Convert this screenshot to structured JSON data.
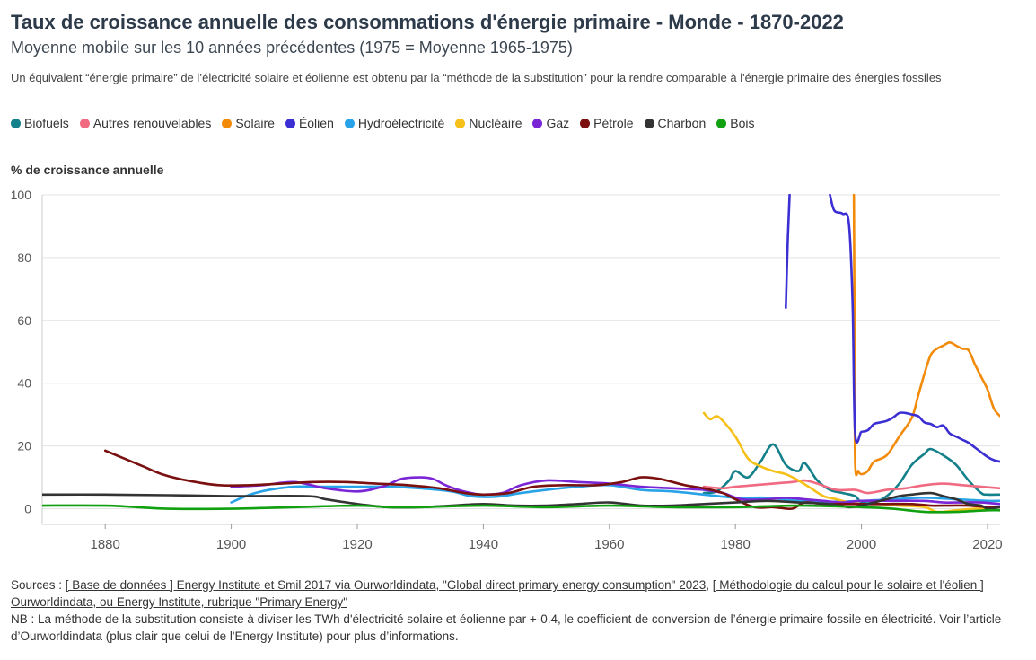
{
  "title": "Taux de croissance annuelle des consommations d'énergie primaire - Monde - 1870-2022",
  "subtitle": "Moyenne mobile sur les 10 années précédentes (1975 = Moyenne 1965-1975)",
  "description": "Un équivalent “énergie primaire” de l’électricité solaire et éolienne est obtenu par la “méthode de la substitution” pour la rendre comparable à l'énergie primaire des énergies fossiles",
  "footer": {
    "sources_prefix": "Sources : ",
    "link1": "[ Base de données ] Energy Institute et Smil 2017 via Ourworldindata, \"Global direct primary energy consumption\" 2023",
    "sep": ", ",
    "link2": "[ Méthodologie du calcul pour le solaire et l'éolien ] Ourworldindata, ou Energy Institute, rubrique \"Primary Energy\"",
    "note": "NB : La méthode de la substitution consiste à diviser les TWh d'électricité solaire et éolienne par +-0.4, le coefficient de conversion de l’énergie primaire fossile en électricité. Voir l’article d’Ourworldindata (plus clair que celui de l'Energy Institute) pour plus d’informations."
  },
  "chart_data": {
    "type": "line",
    "ylabel": "% de croissance annuelle",
    "xlim": [
      1870,
      2022
    ],
    "ylim": [
      -5,
      100
    ],
    "xticks": [
      1880,
      1900,
      1920,
      1940,
      1960,
      1980,
      2000,
      2020
    ],
    "yticks": [
      0,
      20,
      40,
      60,
      80,
      100
    ],
    "grid": "horizontal",
    "legend_position": "top",
    "series": [
      {
        "name": "Biofuels",
        "color": "#14808a",
        "points": [
          [
            1975,
            5
          ],
          [
            1977,
            5.5
          ],
          [
            1979,
            9
          ],
          [
            1980,
            12
          ],
          [
            1982,
            10
          ],
          [
            1984,
            15
          ],
          [
            1986,
            20.5
          ],
          [
            1988,
            14
          ],
          [
            1990,
            12
          ],
          [
            1991,
            14.5
          ],
          [
            1993,
            9
          ],
          [
            1995,
            6
          ],
          [
            1997,
            5
          ],
          [
            1999,
            4
          ],
          [
            2000,
            2
          ],
          [
            2002,
            2
          ],
          [
            2004,
            4
          ],
          [
            2006,
            8
          ],
          [
            2008,
            14
          ],
          [
            2010,
            17.5
          ],
          [
            2011,
            19
          ],
          [
            2013,
            17
          ],
          [
            2015,
            14
          ],
          [
            2017,
            9
          ],
          [
            2019,
            5
          ],
          [
            2020,
            4.5
          ],
          [
            2022,
            4.5
          ]
        ]
      },
      {
        "name": "Autres renouvelables",
        "color": "#f06b82",
        "points": [
          [
            1975,
            7
          ],
          [
            1978,
            6.5
          ],
          [
            1980,
            7
          ],
          [
            1983,
            7.5
          ],
          [
            1986,
            8
          ],
          [
            1989,
            8.5
          ],
          [
            1991,
            9
          ],
          [
            1993,
            8
          ],
          [
            1996,
            6
          ],
          [
            1999,
            6
          ],
          [
            2001,
            5
          ],
          [
            2004,
            6
          ],
          [
            2007,
            6.5
          ],
          [
            2010,
            7.5
          ],
          [
            2013,
            8
          ],
          [
            2016,
            7.5
          ],
          [
            2019,
            7
          ],
          [
            2022,
            6.5
          ]
        ]
      },
      {
        "name": "Solaire",
        "color": "#f28a0a",
        "points": [
          [
            1998.8,
            100
          ],
          [
            1998.9,
            60
          ],
          [
            1999,
            15
          ],
          [
            1999.5,
            12
          ],
          [
            2000,
            11
          ],
          [
            2001,
            12
          ],
          [
            2002,
            15
          ],
          [
            2004,
            17
          ],
          [
            2006,
            23
          ],
          [
            2008,
            29
          ],
          [
            2009,
            36
          ],
          [
            2010,
            43
          ],
          [
            2011,
            49
          ],
          [
            2012,
            51
          ],
          [
            2013,
            52
          ],
          [
            2014,
            53
          ],
          [
            2015,
            52
          ],
          [
            2016,
            51
          ],
          [
            2017,
            50.5
          ],
          [
            2018,
            46
          ],
          [
            2019,
            42
          ],
          [
            2020,
            38
          ],
          [
            2021,
            32
          ],
          [
            2022,
            29.5
          ]
        ]
      },
      {
        "name": "Éolien",
        "color": "#3b2fd4",
        "points": [
          [
            1988,
            64
          ],
          [
            1988.3,
            85
          ],
          [
            1988.6,
            100
          ]
        ]
      },
      {
        "name": "Éolien",
        "color": "#3b2fd4",
        "points": [
          [
            1995,
            100
          ],
          [
            1995.7,
            95
          ],
          [
            1997,
            94
          ],
          [
            1998,
            91
          ],
          [
            1998.6,
            65
          ],
          [
            1999,
            24
          ],
          [
            2000,
            24.5
          ],
          [
            2001,
            25
          ],
          [
            2002,
            27
          ],
          [
            2003,
            27.5
          ],
          [
            2004,
            28
          ],
          [
            2005,
            29
          ],
          [
            2006,
            30.5
          ],
          [
            2007,
            30.5
          ],
          [
            2008,
            30
          ],
          [
            2009,
            29.5
          ],
          [
            2010,
            27.5
          ],
          [
            2011,
            27
          ],
          [
            2012,
            26
          ],
          [
            2013,
            26.5
          ],
          [
            2014,
            24
          ],
          [
            2015,
            23
          ],
          [
            2016,
            22
          ],
          [
            2017,
            21
          ],
          [
            2018,
            19.5
          ],
          [
            2019,
            18
          ],
          [
            2020,
            16.5
          ],
          [
            2021,
            15.5
          ],
          [
            2022,
            15
          ]
        ]
      },
      {
        "name": "Hydroélectricité",
        "color": "#29a3e8",
        "points": [
          [
            1900,
            2
          ],
          [
            1903,
            4.5
          ],
          [
            1906,
            6
          ],
          [
            1910,
            7
          ],
          [
            1915,
            7
          ],
          [
            1920,
            7
          ],
          [
            1925,
            7
          ],
          [
            1930,
            6.5
          ],
          [
            1935,
            5.5
          ],
          [
            1938,
            4
          ],
          [
            1942,
            3.8
          ],
          [
            1946,
            5
          ],
          [
            1950,
            6
          ],
          [
            1955,
            7
          ],
          [
            1960,
            7.5
          ],
          [
            1965,
            6
          ],
          [
            1970,
            5.5
          ],
          [
            1975,
            4.5
          ],
          [
            1980,
            3.5
          ],
          [
            1985,
            3.5
          ],
          [
            1990,
            2.5
          ],
          [
            1995,
            2.2
          ],
          [
            2000,
            2.5
          ],
          [
            2005,
            3
          ],
          [
            2010,
            3.5
          ],
          [
            2015,
            3
          ],
          [
            2020,
            2.5
          ],
          [
            2022,
            2.5
          ]
        ]
      },
      {
        "name": "Nucléaire",
        "color": "#f5c018",
        "points": [
          [
            1975,
            30.5
          ],
          [
            1976,
            28.5
          ],
          [
            1977,
            29.5
          ],
          [
            1978,
            28
          ],
          [
            1980,
            23
          ],
          [
            1982,
            16
          ],
          [
            1984,
            13.5
          ],
          [
            1986,
            12
          ],
          [
            1988,
            11
          ],
          [
            1990,
            9
          ],
          [
            1992,
            6.5
          ],
          [
            1994,
            4
          ],
          [
            1996,
            3
          ],
          [
            1998,
            2
          ],
          [
            2000,
            1.5
          ],
          [
            2003,
            1.5
          ],
          [
            2006,
            1
          ],
          [
            2010,
            0.5
          ],
          [
            2012,
            -1
          ],
          [
            2015,
            -0.5
          ],
          [
            2018,
            0
          ],
          [
            2020,
            0
          ],
          [
            2022,
            0.5
          ]
        ]
      },
      {
        "name": "Gaz",
        "color": "#7b26d6",
        "points": [
          [
            1900,
            7
          ],
          [
            1905,
            7.5
          ],
          [
            1910,
            8.5
          ],
          [
            1915,
            6.5
          ],
          [
            1920,
            5.5
          ],
          [
            1924,
            7
          ],
          [
            1927,
            9.5
          ],
          [
            1930,
            10
          ],
          [
            1932,
            9.5
          ],
          [
            1934,
            7.5
          ],
          [
            1936,
            6
          ],
          [
            1938,
            5
          ],
          [
            1940,
            4.5
          ],
          [
            1943,
            5
          ],
          [
            1946,
            7.5
          ],
          [
            1950,
            9
          ],
          [
            1955,
            8.5
          ],
          [
            1960,
            8
          ],
          [
            1965,
            7
          ],
          [
            1970,
            6.5
          ],
          [
            1975,
            6
          ],
          [
            1978,
            5
          ],
          [
            1981,
            3
          ],
          [
            1985,
            3
          ],
          [
            1988,
            3.5
          ],
          [
            1991,
            3
          ],
          [
            1994,
            2.5
          ],
          [
            1997,
            2
          ],
          [
            2000,
            2.5
          ],
          [
            2005,
            2.5
          ],
          [
            2010,
            2.5
          ],
          [
            2013,
            2
          ],
          [
            2016,
            2
          ],
          [
            2019,
            2
          ],
          [
            2022,
            1.5
          ]
        ]
      },
      {
        "name": "Pétrole",
        "color": "#7a1010",
        "points": [
          [
            1880,
            18.5
          ],
          [
            1883,
            16
          ],
          [
            1886,
            13.5
          ],
          [
            1889,
            11
          ],
          [
            1893,
            9
          ],
          [
            1898,
            7.5
          ],
          [
            1903,
            7.5
          ],
          [
            1908,
            8
          ],
          [
            1913,
            8.5
          ],
          [
            1918,
            8.5
          ],
          [
            1923,
            8
          ],
          [
            1928,
            7.5
          ],
          [
            1933,
            6.5
          ],
          [
            1937,
            5
          ],
          [
            1940,
            4.5
          ],
          [
            1944,
            5
          ],
          [
            1948,
            7
          ],
          [
            1953,
            7.5
          ],
          [
            1958,
            7.5
          ],
          [
            1962,
            8.5
          ],
          [
            1965,
            10
          ],
          [
            1968,
            9.5
          ],
          [
            1972,
            7.5
          ],
          [
            1975,
            6.5
          ],
          [
            1978,
            5
          ],
          [
            1980,
            3
          ],
          [
            1983,
            0.5
          ],
          [
            1986,
            0.5
          ],
          [
            1989,
            0
          ],
          [
            1991,
            2
          ],
          [
            1994,
            1.5
          ],
          [
            1997,
            1.5
          ],
          [
            2000,
            1.5
          ],
          [
            2004,
            1.5
          ],
          [
            2008,
            1.5
          ],
          [
            2011,
            1
          ],
          [
            2014,
            1
          ],
          [
            2017,
            1
          ],
          [
            2020,
            0.5
          ],
          [
            2022,
            0.5
          ]
        ]
      },
      {
        "name": "Charbon",
        "color": "#333333",
        "points": [
          [
            1870,
            4.5
          ],
          [
            1880,
            4.5
          ],
          [
            1890,
            4.3
          ],
          [
            1900,
            4
          ],
          [
            1912,
            4
          ],
          [
            1915,
            3
          ],
          [
            1920,
            1.5
          ],
          [
            1925,
            0.5
          ],
          [
            1930,
            0.5
          ],
          [
            1935,
            1
          ],
          [
            1940,
            1.5
          ],
          [
            1945,
            1
          ],
          [
            1950,
            1
          ],
          [
            1955,
            1.5
          ],
          [
            1960,
            2
          ],
          [
            1965,
            1
          ],
          [
            1970,
            1
          ],
          [
            1975,
            1.5
          ],
          [
            1980,
            2
          ],
          [
            1985,
            2.5
          ],
          [
            1990,
            2
          ],
          [
            1995,
            1.5
          ],
          [
            1998,
            0.5
          ],
          [
            2000,
            1
          ],
          [
            2003,
            2.5
          ],
          [
            2006,
            4
          ],
          [
            2008,
            4.5
          ],
          [
            2011,
            5
          ],
          [
            2013,
            4
          ],
          [
            2015,
            3
          ],
          [
            2017,
            1.5
          ],
          [
            2019,
            1
          ],
          [
            2020,
            0
          ],
          [
            2022,
            0.5
          ]
        ]
      },
      {
        "name": "Bois",
        "color": "#10a010",
        "points": [
          [
            1870,
            1
          ],
          [
            1880,
            1
          ],
          [
            1885,
            0.5
          ],
          [
            1890,
            0
          ],
          [
            1900,
            0
          ],
          [
            1910,
            0.5
          ],
          [
            1920,
            1
          ],
          [
            1925,
            0.5
          ],
          [
            1930,
            0.5
          ],
          [
            1940,
            1
          ],
          [
            1950,
            0.5
          ],
          [
            1960,
            1
          ],
          [
            1970,
            0.5
          ],
          [
            1980,
            0.5
          ],
          [
            1990,
            1
          ],
          [
            2000,
            0.5
          ],
          [
            2005,
            0
          ],
          [
            2010,
            -1
          ],
          [
            2015,
            -1
          ],
          [
            2020,
            -0.5
          ],
          [
            2022,
            -0.5
          ]
        ]
      }
    ]
  }
}
